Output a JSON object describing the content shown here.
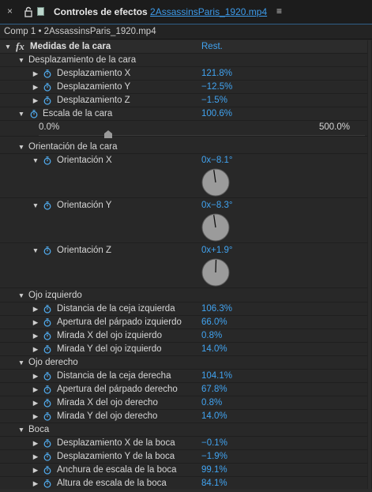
{
  "header": {
    "close_glyph": "×",
    "title_prefix": "Controles de efectos",
    "file_name": "2AssassinsParis_1920.mp4",
    "menu_glyph": "≡"
  },
  "subheader": {
    "text": "Comp 1 • 2AssassinsParis_1920.mp4"
  },
  "effect": {
    "fx": "fx",
    "name": "Medidas de la cara",
    "reset": "Rest."
  },
  "groups": {
    "face_offset": {
      "title": "Desplazamiento de la cara",
      "items": [
        {
          "label": "Desplazamiento X",
          "value": "121.8%"
        },
        {
          "label": "Desplazamiento Y",
          "value": "−12.5%"
        },
        {
          "label": "Desplazamiento Z",
          "value": "−1.5%"
        }
      ]
    },
    "face_scale": {
      "label": "Escala de la cara",
      "value": "100.6%",
      "slider_min": "0.0%",
      "slider_max": "500.0%",
      "slider_value": 100.6,
      "slider_range": [
        0,
        500
      ]
    },
    "face_orientation": {
      "title": "Orientación de la cara",
      "items": [
        {
          "label": "Orientación X",
          "value": "0x−8.1°",
          "angle": -8.1
        },
        {
          "label": "Orientación Y",
          "value": "0x−8.3°",
          "angle": -8.3
        },
        {
          "label": "Orientación Z",
          "value": "0x+1.9°",
          "angle": 1.9
        }
      ]
    },
    "left_eye": {
      "title": "Ojo izquierdo",
      "items": [
        {
          "label": "Distancia de la ceja izquierda",
          "value": "106.3%"
        },
        {
          "label": "Apertura del párpado izquierdo",
          "value": "66.0%"
        },
        {
          "label": "Mirada X del ojo izquierdo",
          "value": "0.8%"
        },
        {
          "label": "Mirada Y del ojo izquierdo",
          "value": "14.0%"
        }
      ]
    },
    "right_eye": {
      "title": "Ojo derecho",
      "items": [
        {
          "label": "Distancia de la ceja derecha",
          "value": "104.1%"
        },
        {
          "label": "Apertura del párpado derecho",
          "value": "67.8%"
        },
        {
          "label": "Mirada X del ojo derecho",
          "value": "0.8%"
        },
        {
          "label": "Mirada Y del ojo derecho",
          "value": "14.0%"
        }
      ]
    },
    "mouth": {
      "title": "Boca",
      "items": [
        {
          "label": "Desplazamiento X de la boca",
          "value": "−0.1%"
        },
        {
          "label": "Desplazamiento Y de la boca",
          "value": "−1.9%"
        },
        {
          "label": "Anchura de escala de la boca",
          "value": "99.1%"
        },
        {
          "label": "Altura de escala de la boca",
          "value": "84.1%"
        }
      ]
    }
  },
  "colors": {
    "accent": "#41a3f0",
    "panel_bg": "#282828",
    "header_bg": "#1c1c1c"
  }
}
